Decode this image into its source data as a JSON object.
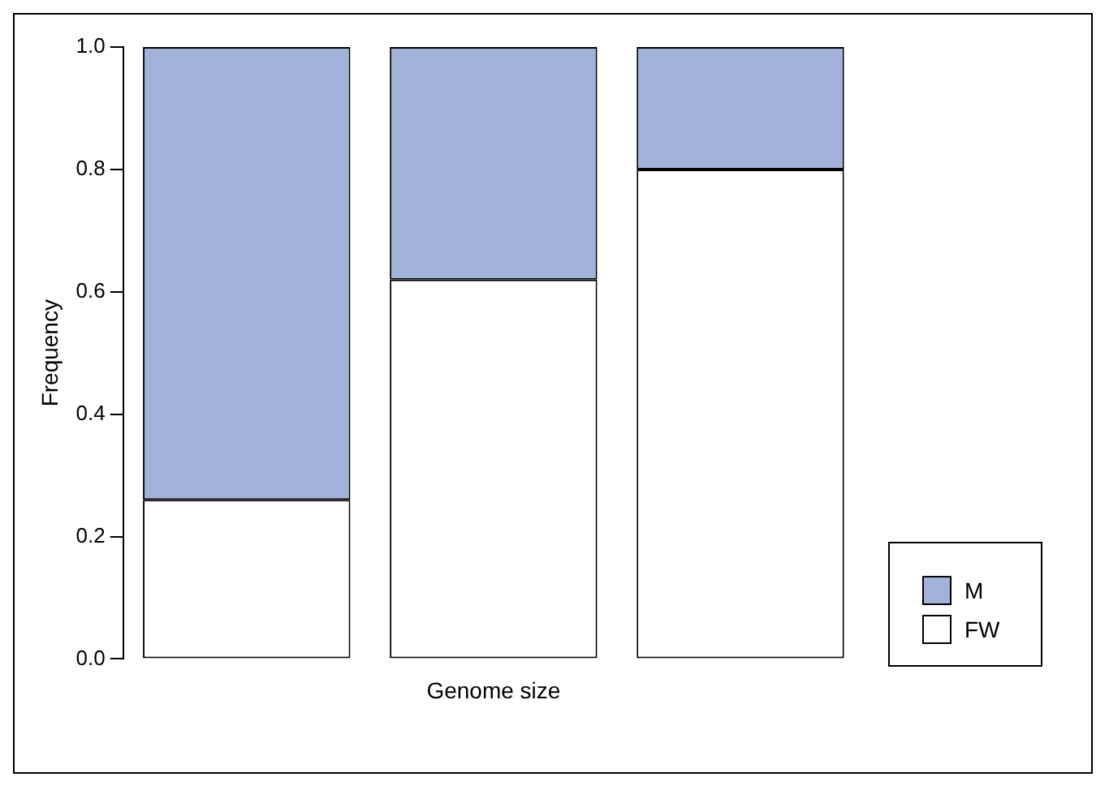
{
  "chart_data": {
    "type": "bar",
    "stacked": true,
    "xlabel": "Genome size",
    "ylabel": "Frequency",
    "categories": [
      null,
      null,
      null
    ],
    "series": [
      {
        "name": "FW",
        "color": "#ffffff",
        "values": [
          0.26,
          0.62,
          0.8
        ]
      },
      {
        "name": "M",
        "color": "#a3b2da",
        "values": [
          0.74,
          0.38,
          0.2
        ]
      }
    ],
    "ylim": [
      0,
      1
    ],
    "yticks": [
      {
        "value": 0,
        "label": "0.0"
      },
      {
        "value": 0.2,
        "label": "0.2"
      },
      {
        "value": 0.4,
        "label": "0.4"
      },
      {
        "value": 0.6,
        "label": "0.6"
      },
      {
        "value": 0.8,
        "label": "0.8"
      },
      {
        "value": 1,
        "label": "1.0"
      }
    ],
    "grid": false,
    "legend": "bottom right"
  }
}
